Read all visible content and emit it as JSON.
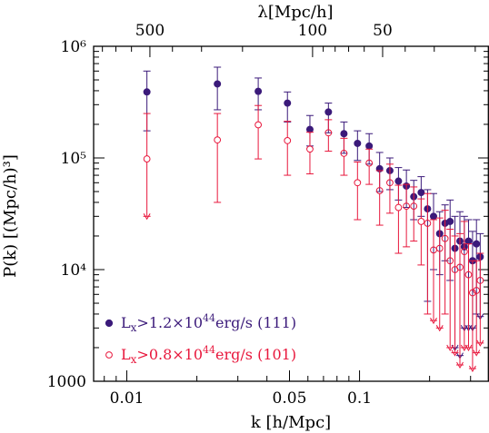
{
  "chart_data": {
    "type": "scatter",
    "title": "",
    "xlabel": "k [h/Mpc]",
    "ylabel": "P(k) [(Mpc/h)³]",
    "top_axis_label": "λ[Mpc/h]",
    "xscale": "log",
    "yscale": "log",
    "xlim": [
      0.0072,
      0.36
    ],
    "ylim": [
      1000,
      1000000
    ],
    "x_ticks": [
      {
        "value": 0.01,
        "label": "0.01"
      },
      {
        "value": 0.05,
        "label": "0.05"
      },
      {
        "value": 0.1,
        "label": "0.1"
      }
    ],
    "top_ticks": [
      {
        "value": 500,
        "label": "500"
      },
      {
        "value": 100,
        "label": "100"
      },
      {
        "value": 50,
        "label": "50"
      }
    ],
    "y_ticks": [
      {
        "value": 1000,
        "label": "1000"
      },
      {
        "value": 10000,
        "label": "10⁴"
      },
      {
        "value": 100000,
        "label": "10⁵"
      },
      {
        "value": 1000000,
        "label": "10⁶"
      }
    ],
    "legend_position": "bottom-left",
    "series": [
      {
        "name": "Lx>1.2×10⁴⁴erg/s (111)",
        "legend": {
          "main": "L",
          "sub": "x",
          "mid": ">1.2×10",
          "sup": "44",
          "end": "erg/s (111)"
        },
        "marker": "filled-circle",
        "color": "#3b1a7a",
        "points": [
          {
            "x": 0.0122,
            "y": 390000,
            "lo": 175000,
            "hi": 600000
          },
          {
            "x": 0.0245,
            "y": 460000,
            "lo": 270000,
            "hi": 650000
          },
          {
            "x": 0.0367,
            "y": 395000,
            "lo": 270000,
            "hi": 520000
          },
          {
            "x": 0.049,
            "y": 310000,
            "lo": 210000,
            "hi": 390000
          },
          {
            "x": 0.0612,
            "y": 180000,
            "lo": 128000,
            "hi": 240000
          },
          {
            "x": 0.0735,
            "y": 258000,
            "lo": 168000,
            "hi": 310000
          },
          {
            "x": 0.0857,
            "y": 165000,
            "lo": 110000,
            "hi": 210000
          },
          {
            "x": 0.098,
            "y": 135000,
            "lo": 95000,
            "hi": 175000
          },
          {
            "x": 0.11,
            "y": 128000,
            "lo": 88000,
            "hi": 165000
          },
          {
            "x": 0.122,
            "y": 80000,
            "lo": 50000,
            "hi": 112000
          },
          {
            "x": 0.135,
            "y": 77000,
            "lo": 52000,
            "hi": 100000
          },
          {
            "x": 0.147,
            "y": 62000,
            "lo": 42000,
            "hi": 82000
          },
          {
            "x": 0.159,
            "y": 56000,
            "lo": 36000,
            "hi": 78000
          },
          {
            "x": 0.171,
            "y": 45000,
            "lo": 28000,
            "hi": 63000
          },
          {
            "x": 0.184,
            "y": 49000,
            "lo": 30000,
            "hi": 68000
          },
          {
            "x": 0.196,
            "y": 35000,
            "lo": 5200,
            "hi": 52000
          },
          {
            "x": 0.208,
            "y": 30000,
            "lo": 10000,
            "hi": 48000
          },
          {
            "x": 0.221,
            "y": 21000,
            "lo": 9000,
            "hi": 33000
          },
          {
            "x": 0.233,
            "y": 26000,
            "lo": 12000,
            "hi": 38000
          },
          {
            "x": 0.245,
            "y": 27000,
            "lo": 8000,
            "hi": 42000
          },
          {
            "x": 0.257,
            "y": 15500,
            "lo": 2000,
            "hi": 30000
          },
          {
            "x": 0.27,
            "y": 18000,
            "lo": 1700,
            "hi": 33000
          },
          {
            "x": 0.282,
            "y": 16000,
            "lo": 3000,
            "hi": 30000
          },
          {
            "x": 0.294,
            "y": 18000,
            "lo": 3000,
            "hi": 28000
          },
          {
            "x": 0.306,
            "y": 12000,
            "lo": 3000,
            "hi": 22000
          },
          {
            "x": 0.318,
            "y": 17000,
            "lo": 4000,
            "hi": 28000
          },
          {
            "x": 0.33,
            "y": 13000,
            "lo": 3800,
            "hi": 21000
          }
        ]
      },
      {
        "name": "Lx>0.8×10⁴⁴erg/s (101)",
        "legend": {
          "main": "L",
          "sub": "x",
          "mid": ">0.8×10",
          "sup": "44",
          "end": "erg/s (101)"
        },
        "marker": "open-circle",
        "color": "#e8173c",
        "points": [
          {
            "x": 0.0122,
            "y": 98000,
            "lo": 30000,
            "hi": 250000,
            "upper_limit": true
          },
          {
            "x": 0.0245,
            "y": 145000,
            "lo": 40000,
            "hi": 250000
          },
          {
            "x": 0.0367,
            "y": 198000,
            "lo": 98000,
            "hi": 295000
          },
          {
            "x": 0.049,
            "y": 143000,
            "lo": 70000,
            "hi": 213000
          },
          {
            "x": 0.0612,
            "y": 120000,
            "lo": 72000,
            "hi": 170000
          },
          {
            "x": 0.0735,
            "y": 168000,
            "lo": 115000,
            "hi": 220000
          },
          {
            "x": 0.0857,
            "y": 110000,
            "lo": 70000,
            "hi": 150000
          },
          {
            "x": 0.098,
            "y": 60000,
            "lo": 28000,
            "hi": 92000
          },
          {
            "x": 0.11,
            "y": 90000,
            "lo": 58000,
            "hi": 120000
          },
          {
            "x": 0.122,
            "y": 51000,
            "lo": 25000,
            "hi": 77000
          },
          {
            "x": 0.135,
            "y": 60000,
            "lo": 32000,
            "hi": 88000
          },
          {
            "x": 0.147,
            "y": 36000,
            "lo": 14000,
            "hi": 57000
          },
          {
            "x": 0.159,
            "y": 37000,
            "lo": 16000,
            "hi": 58000
          },
          {
            "x": 0.171,
            "y": 37000,
            "lo": 18000,
            "hi": 55000
          },
          {
            "x": 0.184,
            "y": 27000,
            "lo": 11000,
            "hi": 43000
          },
          {
            "x": 0.196,
            "y": 26000,
            "lo": 4000,
            "hi": 48000
          },
          {
            "x": 0.208,
            "y": 15000,
            "lo": 3500,
            "hi": 28000
          },
          {
            "x": 0.221,
            "y": 15500,
            "lo": 3000,
            "hi": 29000
          },
          {
            "x": 0.233,
            "y": 19000,
            "lo": 4000,
            "hi": 34000
          },
          {
            "x": 0.245,
            "y": 12000,
            "lo": 2000,
            "hi": 23000
          },
          {
            "x": 0.257,
            "y": 10000,
            "lo": 1800,
            "hi": 20000
          },
          {
            "x": 0.27,
            "y": 10500,
            "lo": 1400,
            "hi": 21000
          },
          {
            "x": 0.282,
            "y": 14500,
            "lo": 2000,
            "hi": 27000
          },
          {
            "x": 0.294,
            "y": 9000,
            "lo": 2000,
            "hi": 17000
          },
          {
            "x": 0.306,
            "y": 6200,
            "lo": 1300,
            "hi": 12000
          },
          {
            "x": 0.318,
            "y": 6500,
            "lo": 1800,
            "hi": 12000
          },
          {
            "x": 0.33,
            "y": 8000,
            "lo": 2200,
            "hi": 14000
          }
        ]
      }
    ]
  }
}
